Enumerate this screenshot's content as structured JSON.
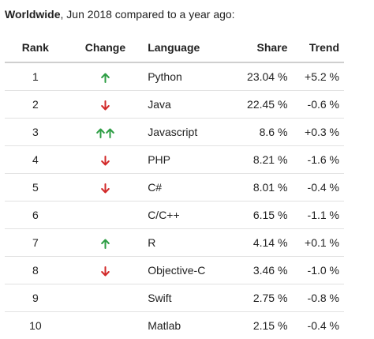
{
  "caption": {
    "bold": "Worldwide",
    "rest": ", Jun 2018 compared to a year ago:"
  },
  "colors": {
    "up": "#2e9e45",
    "down": "#d22a2a"
  },
  "table": {
    "headers": {
      "rank": "Rank",
      "change": "Change",
      "language": "Language",
      "share": "Share",
      "trend": "Trend"
    },
    "rows": [
      {
        "rank": "1",
        "change": [
          "up-arrow-icon"
        ],
        "language": "Python",
        "share": "23.04 %",
        "trend": "+5.2 %"
      },
      {
        "rank": "2",
        "change": [
          "down-arrow-icon"
        ],
        "language": "Java",
        "share": "22.45 %",
        "trend": "-0.6 %"
      },
      {
        "rank": "3",
        "change": [
          "up-arrow-icon",
          "up-arrow-icon"
        ],
        "language": "Javascript",
        "share": "8.6 %",
        "trend": "+0.3 %"
      },
      {
        "rank": "4",
        "change": [
          "down-arrow-icon"
        ],
        "language": "PHP",
        "share": "8.21 %",
        "trend": "-1.6 %"
      },
      {
        "rank": "5",
        "change": [
          "down-arrow-icon"
        ],
        "language": "C#",
        "share": "8.01 %",
        "trend": "-0.4 %"
      },
      {
        "rank": "6",
        "change": [],
        "language": "C/C++",
        "share": "6.15 %",
        "trend": "-1.1 %"
      },
      {
        "rank": "7",
        "change": [
          "up-arrow-icon"
        ],
        "language": "R",
        "share": "4.14 %",
        "trend": "+0.1 %"
      },
      {
        "rank": "8",
        "change": [
          "down-arrow-icon"
        ],
        "language": "Objective-C",
        "share": "3.46 %",
        "trend": "-1.0 %"
      },
      {
        "rank": "9",
        "change": [],
        "language": "Swift",
        "share": "2.75 %",
        "trend": "-0.8 %"
      },
      {
        "rank": "10",
        "change": [],
        "language": "Matlab",
        "share": "2.15 %",
        "trend": "-0.4 %"
      }
    ]
  }
}
